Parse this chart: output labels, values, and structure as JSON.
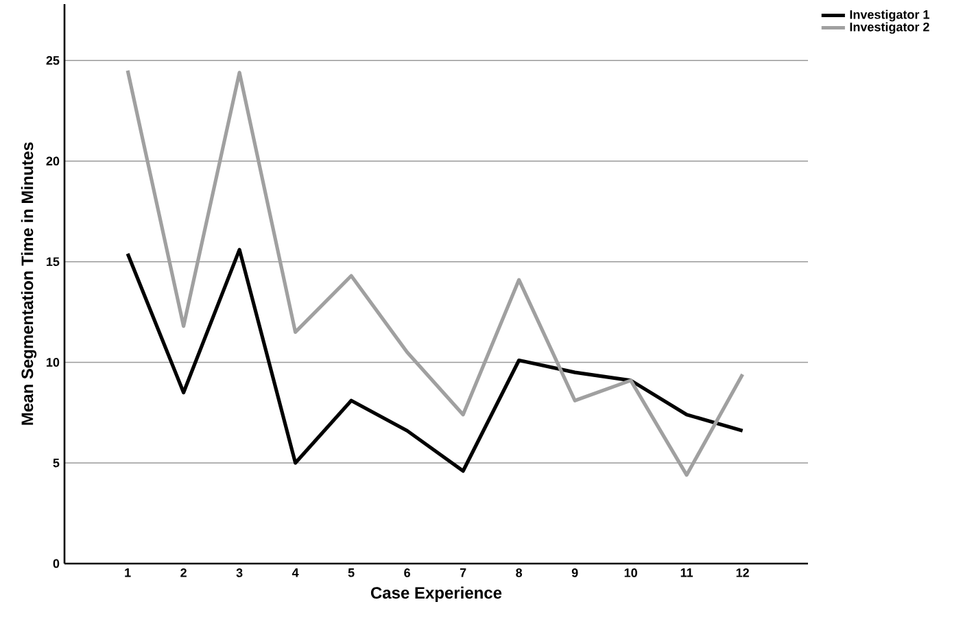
{
  "chart_data": {
    "type": "line",
    "xlabel": "Case Experience",
    "ylabel": "Mean Segmentation Time in Minutes",
    "categories": [
      "1",
      "2",
      "3",
      "4",
      "5",
      "6",
      "7",
      "8",
      "9",
      "10",
      "11",
      "12"
    ],
    "series": [
      {
        "name": "Investigator 1",
        "color": "#000000",
        "values": [
          15.4,
          8.5,
          15.6,
          5.0,
          8.1,
          6.6,
          4.6,
          10.1,
          9.5,
          9.1,
          7.4,
          6.6
        ]
      },
      {
        "name": "Investigator 2",
        "color": "#a0a0a0",
        "values": [
          24.5,
          11.8,
          24.4,
          11.5,
          14.3,
          10.5,
          7.4,
          14.1,
          8.1,
          9.1,
          4.4,
          9.4
        ]
      }
    ],
    "ylim": [
      0,
      27.8
    ],
    "yticks": [
      0,
      5,
      10,
      15,
      20,
      25
    ],
    "grid": "y",
    "legend": "top right",
    "marker": "none",
    "line_style": "solid"
  }
}
